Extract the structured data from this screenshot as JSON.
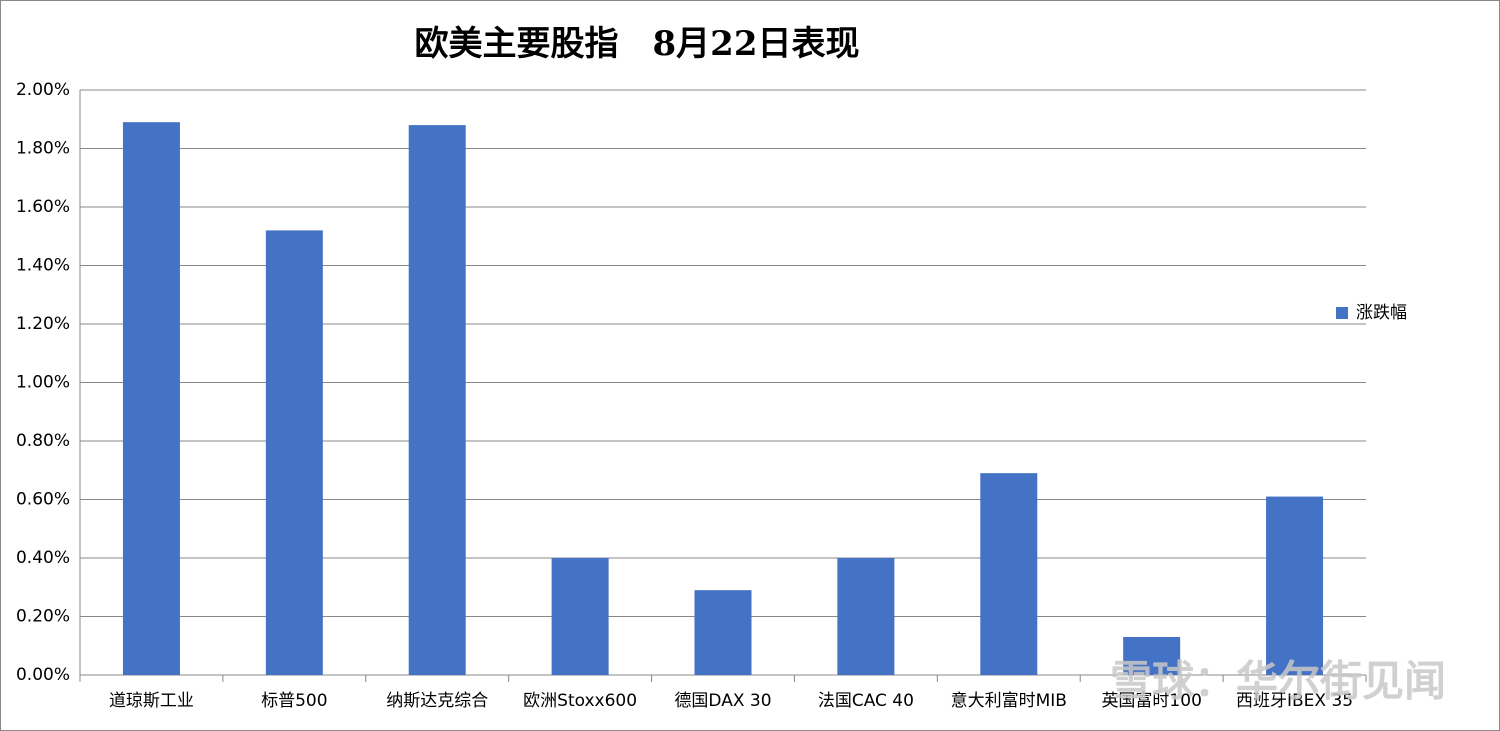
{
  "chart_data": {
    "type": "bar",
    "title": "欧美主要股指　8月22日表现",
    "categories": [
      "道琼斯工业",
      "标普500",
      "纳斯达克综合",
      "欧洲Stoxx600",
      "德国DAX 30",
      "法国CAC 40",
      "意大利富时MIB",
      "英国富时100",
      "西班牙IBEX 35"
    ],
    "series": [
      {
        "name": "涨跌幅",
        "color": "#4472c4",
        "values": [
          1.89,
          1.52,
          1.88,
          0.4,
          0.29,
          0.4,
          0.69,
          0.13,
          0.61
        ]
      }
    ],
    "ylim": [
      0,
      2
    ],
    "yticks": [
      {
        "value": 0,
        "label": "0.00%"
      },
      {
        "value": 0.2,
        "label": "0.20%"
      },
      {
        "value": 0.4,
        "label": "0.40%"
      },
      {
        "value": 0.6,
        "label": "0.60%"
      },
      {
        "value": 0.8,
        "label": "0.80%"
      },
      {
        "value": 1,
        "label": "1.00%"
      },
      {
        "value": 1.2,
        "label": "1.20%"
      },
      {
        "value": 1.4,
        "label": "1.40%"
      },
      {
        "value": 1.6,
        "label": "1.60%"
      },
      {
        "value": 1.8,
        "label": "1.80%"
      },
      {
        "value": 2,
        "label": "2.00%"
      }
    ],
    "grid": true,
    "legend": "right",
    "watermark": "雪球：华尔街见闻"
  }
}
